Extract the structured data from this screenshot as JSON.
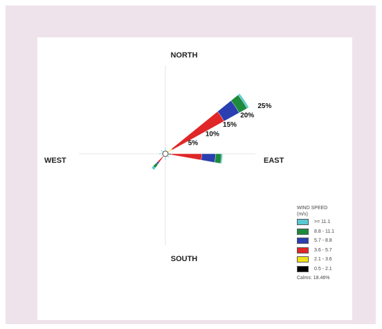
{
  "chart_data": {
    "type": "wind-rose",
    "directions": {
      "north": "NORTH",
      "south": "SOUTH",
      "east": "EAST",
      "west": "WEST"
    },
    "rings": [
      {
        "value": 5,
        "label": "5%"
      },
      {
        "value": 10,
        "label": "10%"
      },
      {
        "value": 15,
        "label": "15%"
      },
      {
        "value": 20,
        "label": "20%"
      },
      {
        "value": 25,
        "label": "25%"
      }
    ],
    "legend": {
      "title": "WIND SPEED",
      "units": "(m/s)",
      "classes": [
        {
          "label": ">= 11.1",
          "color": "#5ac8d2"
        },
        {
          "label": "8.8 - 11.1",
          "color": "#1d8a3c"
        },
        {
          "label": "5.7 - 8.8",
          "color": "#2b3fb0"
        },
        {
          "label": "3.6 - 5.7",
          "color": "#e02626"
        },
        {
          "label": "2.1 - 3.6",
          "color": "#f0e21a"
        },
        {
          "label": "0.5 - 2.1",
          "color": "#000000"
        }
      ],
      "calms": "Calms: 18.46%"
    },
    "sectors": [
      {
        "direction_deg": 56,
        "segments": [
          0.5,
          2.3,
          4.4,
          15.0,
          1.3,
          0
        ]
      },
      {
        "direction_deg": 95,
        "segments": [
          0.3,
          1.5,
          3.5,
          7.7,
          0,
          0.8
        ]
      },
      {
        "direction_deg": 220,
        "segments": [
          0.6,
          1.2,
          0.5,
          2.0,
          0,
          0
        ]
      },
      {
        "direction_deg": 0,
        "segments": [
          0.8,
          0,
          0,
          0,
          0,
          0
        ]
      },
      {
        "direction_deg": 180,
        "segments": [
          0.8,
          0,
          0,
          0,
          0,
          0
        ]
      },
      {
        "direction_deg": 270,
        "segments": [
          0.9,
          0,
          0,
          0,
          0,
          0
        ]
      },
      {
        "direction_deg": 310,
        "segments": [
          0.7,
          0,
          0,
          0,
          0,
          0
        ]
      },
      {
        "direction_deg": 135,
        "segments": [
          0.6,
          0,
          0,
          0,
          0,
          0
        ]
      }
    ]
  }
}
